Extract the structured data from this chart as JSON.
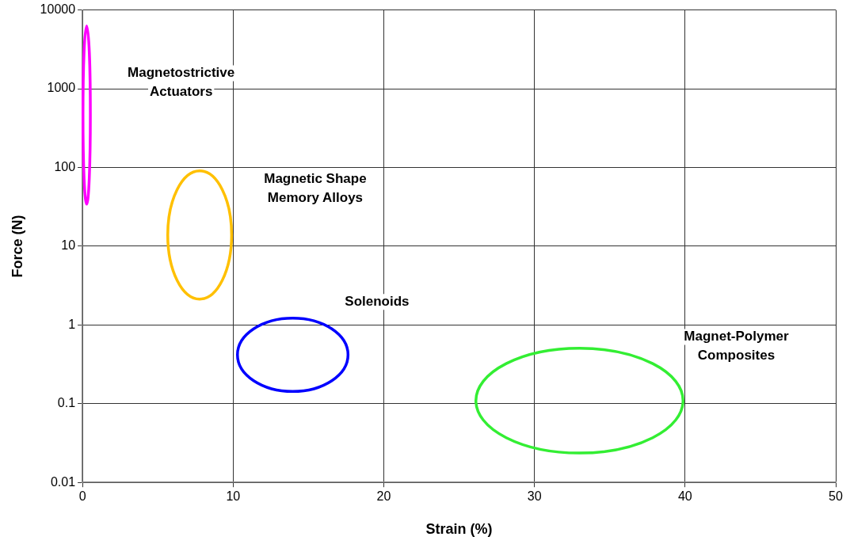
{
  "chart_data": {
    "type": "line",
    "xlabel": "Strain (%)",
    "ylabel": "Force (N)",
    "log": "y",
    "grid": true,
    "xlim": [
      0,
      50
    ],
    "xticks": [
      0,
      10,
      20,
      30,
      40,
      50
    ],
    "ylim": [
      0.01,
      10000
    ],
    "yticks": [
      0.01,
      0.1,
      1,
      10,
      100,
      1000,
      10000
    ],
    "annotations": [
      "Magnetostrictive Actuators",
      "Magnetic Shape Memory Alloys",
      "Solenoids",
      "Magnet-Polymer Composites"
    ]
  }
}
